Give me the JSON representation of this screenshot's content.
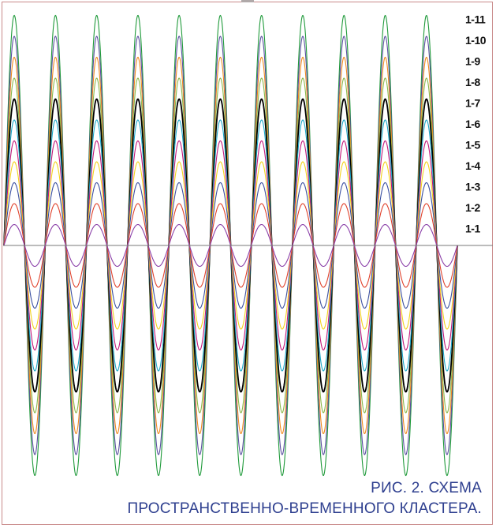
{
  "chart_data": {
    "type": "line",
    "title": "",
    "xlabel": "",
    "ylabel": "",
    "cycles": 11,
    "axis_line": true,
    "grid": false,
    "legend": "right-labels-at-peaks",
    "series": [
      {
        "name": "1-1",
        "amplitude": 1,
        "color": "#8a3fa8"
      },
      {
        "name": "1-2",
        "amplitude": 2,
        "color": "#e0402a"
      },
      {
        "name": "1-3",
        "amplitude": 3,
        "color": "#3a4fa0"
      },
      {
        "name": "1-4",
        "amplitude": 4,
        "color": "#f2d21a"
      },
      {
        "name": "1-5",
        "amplitude": 5,
        "color": "#c2187a"
      },
      {
        "name": "1-6",
        "amplitude": 6,
        "color": "#1aa8c8"
      },
      {
        "name": "1-7",
        "amplitude": 7,
        "color": "#000000"
      },
      {
        "name": "1-8",
        "amplitude": 8,
        "color": "#8ab84a"
      },
      {
        "name": "1-9",
        "amplitude": 9,
        "color": "#f08a1e"
      },
      {
        "name": "1-10",
        "amplitude": 10,
        "color": "#5a4fa0"
      },
      {
        "name": "1-11",
        "amplitude": 11,
        "color": "#1f9a3a"
      }
    ],
    "ylim": [
      -11,
      11
    ]
  },
  "caption": {
    "line1": "РИС. 2.  СХЕМА",
    "line2": "ПРОСТРАНСТВЕННО-ВРЕМЕННОГО КЛАСТЕРА."
  }
}
